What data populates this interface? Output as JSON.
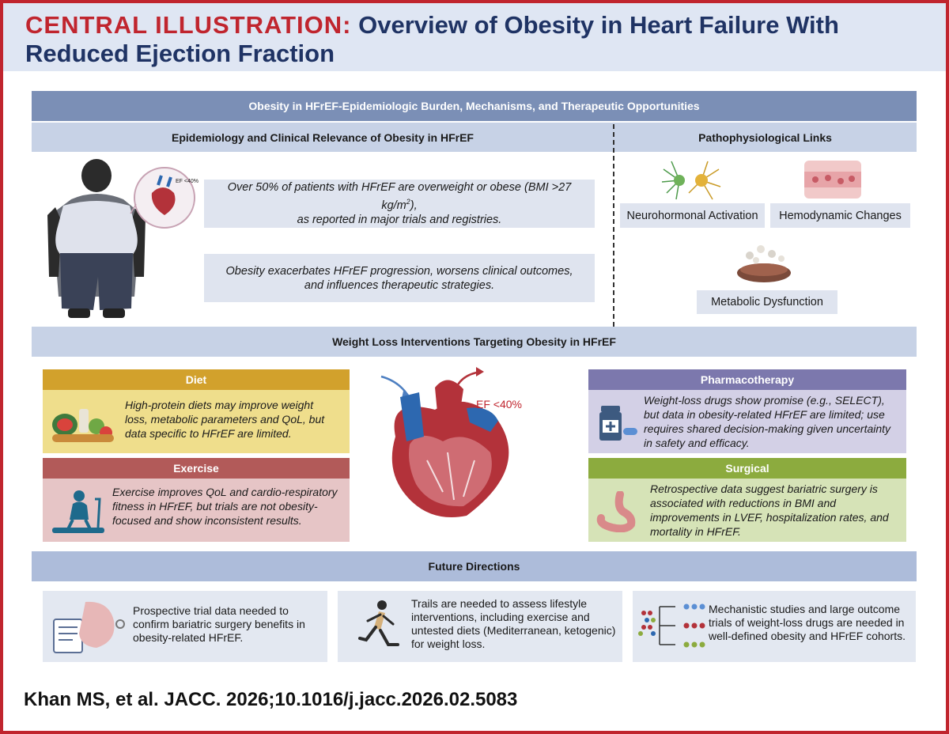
{
  "header": {
    "title_lead": "CENTRAL ILLUSTRATION:",
    "title_rest": "Overview of Obesity in Heart Failure With Reduced Ejection Fraction"
  },
  "sections": {
    "top_band": "Obesity in HFrEF-Epidemiologic Burden, Mechanisms, and Therapeutic Opportunities",
    "epidemiology": "Epidemiology and Clinical Relevance of Obesity in HFrEF",
    "patho": "Pathophysiological Links",
    "weight_loss": "Weight Loss Interventions Targeting Obesity in HFrEF",
    "future": "Future Directions"
  },
  "epidemiology": {
    "ef_badge": "EF <40%",
    "fact1_pre": "Over 50% of patients with HFrEF are overweight or obese (BMI >27 kg/m",
    "fact1_sup": "2",
    "fact1_post": "),",
    "fact1_line2": "as reported in major trials and registries.",
    "fact2": "Obesity exacerbates HFrEF progression, worsens clinical outcomes, and influences therapeutic strategies."
  },
  "patho": {
    "neuro": "Neurohormonal Activation",
    "hemo": "Hemodynamic Changes",
    "meta": "Metabolic Dysfunction"
  },
  "interventions": {
    "heart_ef": "EF <40%",
    "diet": {
      "title": "Diet",
      "text": "High-protein diets may improve weight loss, metabolic parameters and QoL, but data specific to HFrEF are limited."
    },
    "exercise": {
      "title": "Exercise",
      "text": "Exercise improves QoL and cardio-respiratory fitness in HFrEF, but trials are not obesity-focused and show inconsistent results."
    },
    "pharma": {
      "title": "Pharmacotherapy",
      "text": "Weight-loss drugs show promise (e.g., SELECT), but data in obesity-related HFrEF are limited; use requires shared decision-making given uncertainty in safety and efficacy."
    },
    "surgical": {
      "title": "Surgical",
      "text": "Retrospective data suggest bariatric surgery is associated with reductions in BMI and improvements in LVEF, hospitalization rates, and mortality in HFrEF."
    }
  },
  "future": {
    "f1": "Prospective trial data needed to confirm bariatric surgery benefits in obesity-related HFrEF.",
    "f2": "Trails are needed to assess lifestyle interventions, including exercise and untested diets (Mediterranean, ketogenic) for weight loss.",
    "f3": "Mechanistic studies and large outcome trials of weight-loss drugs are needed in well-defined obesity and HFrEF cohorts."
  },
  "citation": "Khan MS, et al. JACC. 2026;10.1016/j.jacc.2026.02.5083",
  "colors": {
    "accent_red": "#c0252e",
    "navy": "#1f3364",
    "diet": "#d2a12c",
    "exercise": "#b25a59",
    "pharma": "#7c78ad",
    "surgical": "#8cab3e"
  }
}
